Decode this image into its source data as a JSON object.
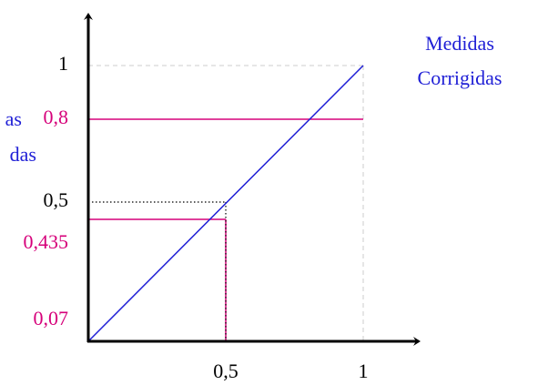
{
  "left_label": {
    "line1": "as",
    "line2": "das"
  },
  "right_label": {
    "line1": "Medidas",
    "line2": "Corrigidas"
  },
  "y_labels": {
    "one": "1",
    "half": "0,5",
    "upper": "0,8",
    "middle": "0,435",
    "lower": "0,07"
  },
  "x_labels": {
    "half": "0,5",
    "one": "1"
  }
}
